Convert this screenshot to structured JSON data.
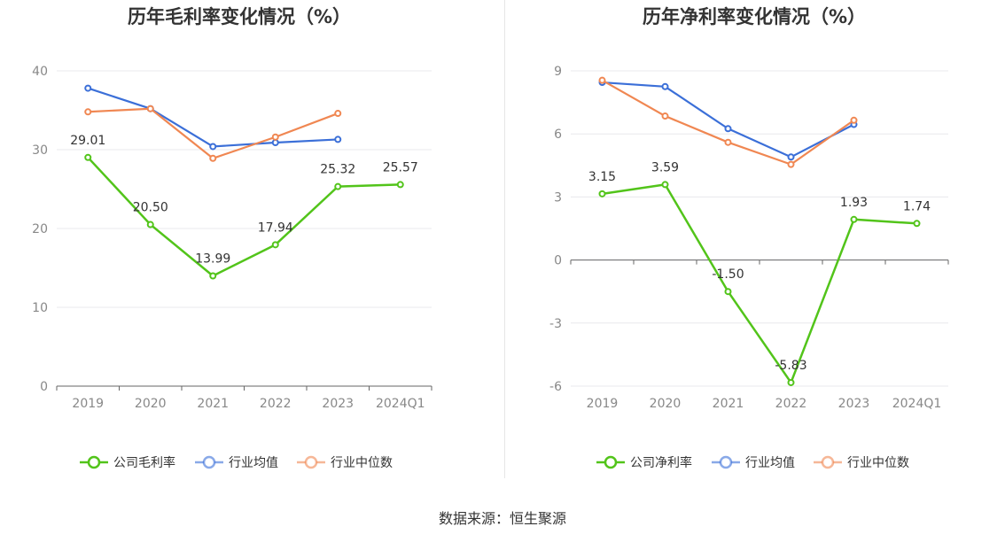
{
  "source_label": "数据来源：恒生聚源",
  "colors": {
    "company": "#52c41a",
    "avg": "#3b6fd8",
    "median": "#f08752"
  },
  "chart_data": [
    {
      "type": "line",
      "title": "历年毛利率变化情况（%）",
      "categories": [
        "2019",
        "2020",
        "2021",
        "2022",
        "2023",
        "2024Q1"
      ],
      "ylim": [
        0,
        40
      ],
      "yticks": [
        0,
        10,
        20,
        30,
        40
      ],
      "series": [
        {
          "key": "company",
          "name": "公司毛利率",
          "values": [
            29.01,
            20.5,
            13.99,
            17.94,
            25.32,
            25.57
          ],
          "labels": [
            "29.01",
            "20.50",
            "13.99",
            "17.94",
            "25.32",
            "25.57"
          ]
        },
        {
          "key": "avg",
          "name": "行业均值",
          "values": [
            37.8,
            35.2,
            30.4,
            30.9,
            31.3,
            null
          ]
        },
        {
          "key": "median",
          "name": "行业中位数",
          "values": [
            34.8,
            35.2,
            28.9,
            31.6,
            34.6,
            null
          ]
        }
      ]
    },
    {
      "type": "line",
      "title": "历年净利率变化情况（%）",
      "categories": [
        "2019",
        "2020",
        "2021",
        "2022",
        "2023",
        "2024Q1"
      ],
      "ylim": [
        -6,
        9
      ],
      "yticks": [
        -6,
        -3,
        0,
        3,
        6,
        9
      ],
      "series": [
        {
          "key": "company",
          "name": "公司净利率",
          "values": [
            3.15,
            3.59,
            -1.5,
            -5.83,
            1.93,
            1.74
          ],
          "labels": [
            "3.15",
            "3.59",
            "-1.50",
            "-5.83",
            "1.93",
            "1.74"
          ]
        },
        {
          "key": "avg",
          "name": "行业均值",
          "values": [
            8.45,
            8.25,
            6.25,
            4.9,
            6.45,
            null
          ]
        },
        {
          "key": "median",
          "name": "行业中位数",
          "values": [
            8.55,
            6.85,
            5.6,
            4.55,
            6.65,
            null
          ]
        }
      ]
    }
  ]
}
